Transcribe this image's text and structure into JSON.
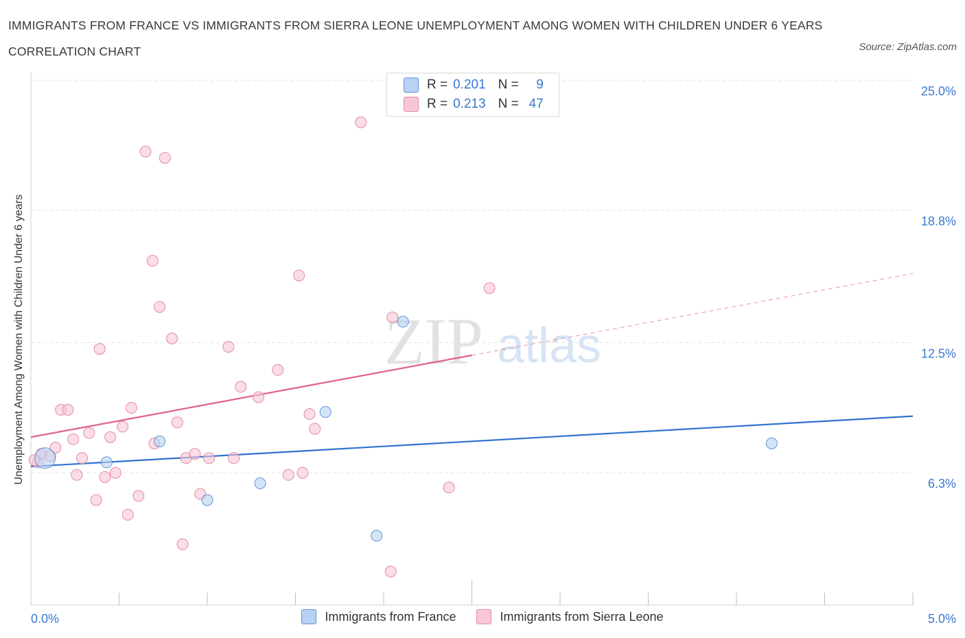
{
  "title": "IMMIGRANTS FROM FRANCE VS IMMIGRANTS FROM SIERRA LEONE UNEMPLOYMENT AMONG WOMEN WITH CHILDREN UNDER 6 YEARS CORRELATION CHART",
  "source": "Source: ZipAtlas.com",
  "watermark": {
    "zip": "ZIP",
    "atlas": "atlas"
  },
  "legend_top": [
    {
      "r_label": "R =",
      "r_value": "0.201",
      "n_label": "N =",
      "n_value": "9"
    },
    {
      "r_label": "R =",
      "r_value": "0.213",
      "n_label": "N =",
      "n_value": "47"
    }
  ],
  "legend_bottom": [
    {
      "label": "Immigrants from France"
    },
    {
      "label": "Immigrants from Sierra Leone"
    }
  ],
  "colors": {
    "france_fill": "#b8d2f2",
    "france_stroke": "#5f92d6",
    "france_line": "#2f72cf",
    "sierra_fill": "#f7c7d5",
    "sierra_stroke": "#e48aa5",
    "sierra_line": "#e0608a",
    "axis_text": "#3a78d0",
    "grid": "#e3e3e3"
  },
  "chart_data": {
    "type": "scatter",
    "title": "IMMIGRANTS FROM FRANCE VS IMMIGRANTS FROM SIERRA LEONE UNEMPLOYMENT AMONG WOMEN WITH CHILDREN UNDER 6 YEARS CORRELATION CHART",
    "xlabel": "",
    "ylabel": "Unemployment Among Women with Children Under 6 years",
    "xlim": [
      0,
      5.0
    ],
    "ylim": [
      0,
      25.0
    ],
    "x_tick_labels": [
      "0.0%",
      "5.0%"
    ],
    "y_ticks": [
      6.3,
      12.5,
      18.8,
      25.0
    ],
    "y_tick_labels": [
      "6.3%",
      "12.5%",
      "18.8%",
      "25.0%"
    ],
    "grid": "horizontal dashed",
    "legend_position": "top-center",
    "series": [
      {
        "name": "Immigrants from France",
        "r": 0.201,
        "n": 9,
        "points": [
          {
            "x": 0.08,
            "y": 7.0,
            "large": true
          },
          {
            "x": 0.43,
            "y": 6.8
          },
          {
            "x": 0.73,
            "y": 7.8
          },
          {
            "x": 1.0,
            "y": 5.0
          },
          {
            "x": 1.3,
            "y": 5.8
          },
          {
            "x": 1.67,
            "y": 9.2
          },
          {
            "x": 1.96,
            "y": 3.3
          },
          {
            "x": 2.11,
            "y": 13.5
          },
          {
            "x": 4.2,
            "y": 7.7
          }
        ],
        "trend": {
          "x0": 0.0,
          "y0": 6.6,
          "x1": 5.0,
          "y1": 9.0,
          "solid_to": 5.0
        }
      },
      {
        "name": "Immigrants from Sierra Leone",
        "r": 0.213,
        "n": 47,
        "points": [
          {
            "x": 0.04,
            "y": 6.8
          },
          {
            "x": 0.06,
            "y": 7.2
          },
          {
            "x": 0.11,
            "y": 7.1
          },
          {
            "x": 0.14,
            "y": 7.5
          },
          {
            "x": 0.17,
            "y": 9.3
          },
          {
            "x": 0.21,
            "y": 9.3
          },
          {
            "x": 0.24,
            "y": 7.9
          },
          {
            "x": 0.26,
            "y": 6.2
          },
          {
            "x": 0.29,
            "y": 7.0
          },
          {
            "x": 0.33,
            "y": 8.2
          },
          {
            "x": 0.37,
            "y": 5.0
          },
          {
            "x": 0.39,
            "y": 12.2
          },
          {
            "x": 0.42,
            "y": 6.1
          },
          {
            "x": 0.45,
            "y": 8.0
          },
          {
            "x": 0.48,
            "y": 6.3
          },
          {
            "x": 0.52,
            "y": 8.5
          },
          {
            "x": 0.55,
            "y": 4.3
          },
          {
            "x": 0.57,
            "y": 9.4
          },
          {
            "x": 0.61,
            "y": 5.2
          },
          {
            "x": 0.65,
            "y": 21.6
          },
          {
            "x": 0.69,
            "y": 16.4
          },
          {
            "x": 0.7,
            "y": 7.7
          },
          {
            "x": 0.73,
            "y": 14.2
          },
          {
            "x": 0.76,
            "y": 21.3
          },
          {
            "x": 0.8,
            "y": 12.7
          },
          {
            "x": 0.83,
            "y": 8.7
          },
          {
            "x": 0.86,
            "y": 2.9
          },
          {
            "x": 0.88,
            "y": 7.0
          },
          {
            "x": 0.93,
            "y": 7.2
          },
          {
            "x": 0.96,
            "y": 5.3
          },
          {
            "x": 1.01,
            "y": 7.0
          },
          {
            "x": 1.12,
            "y": 12.3
          },
          {
            "x": 1.15,
            "y": 7.0
          },
          {
            "x": 1.19,
            "y": 10.4
          },
          {
            "x": 1.29,
            "y": 9.9
          },
          {
            "x": 1.4,
            "y": 11.2
          },
          {
            "x": 1.46,
            "y": 6.2
          },
          {
            "x": 1.52,
            "y": 15.7
          },
          {
            "x": 1.54,
            "y": 6.3
          },
          {
            "x": 1.58,
            "y": 9.1
          },
          {
            "x": 1.61,
            "y": 8.4
          },
          {
            "x": 1.87,
            "y": 23.0
          },
          {
            "x": 2.04,
            "y": 1.6
          },
          {
            "x": 2.05,
            "y": 13.7
          },
          {
            "x": 2.37,
            "y": 5.6
          },
          {
            "x": 2.6,
            "y": 15.1
          },
          {
            "x": 0.02,
            "y": 6.9
          }
        ],
        "trend": {
          "x0": 0.0,
          "y0": 8.0,
          "x1": 5.0,
          "y1": 15.8,
          "solid_to": 2.5
        }
      }
    ]
  }
}
